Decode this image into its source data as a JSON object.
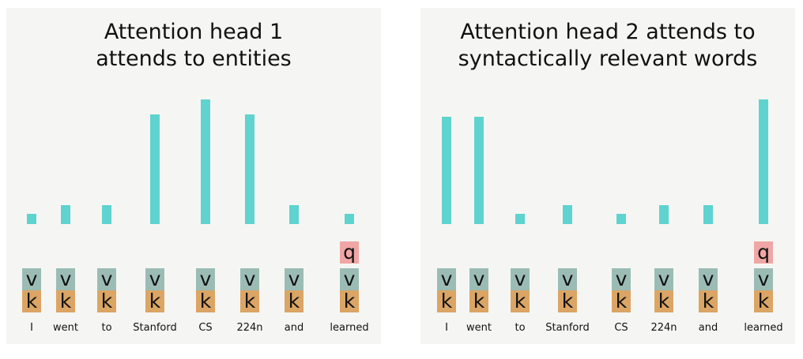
{
  "panels": [
    {
      "title_line1": "Attention head 1",
      "title_line2": "attends to entities",
      "query_token": "learned",
      "tokens": [
        "I",
        "went",
        "to",
        "Stanford",
        "CS",
        "224n",
        "and",
        "learned"
      ],
      "attention": [
        0.08,
        0.15,
        0.15,
        0.88,
        1.0,
        0.88,
        0.15,
        0.08
      ],
      "key_label": "k",
      "value_label": "v",
      "query_label": "q"
    },
    {
      "title_line1": "Attention head 2 attends to",
      "title_line2": "syntactically relevant words",
      "query_token": "learned",
      "tokens": [
        "I",
        "went",
        "to",
        "Stanford",
        "CS",
        "224n",
        "and",
        "learned"
      ],
      "attention": [
        0.86,
        0.86,
        0.08,
        0.15,
        0.08,
        0.15,
        0.15,
        1.0
      ],
      "key_label": "k",
      "value_label": "v",
      "query_label": "q"
    }
  ],
  "colors": {
    "bar": "#5fd3cf",
    "value_box": "#9bbcb5",
    "key_box": "#dba565",
    "query_box": "#f0a6a5",
    "panel_bg": "#f5f6f3"
  }
}
